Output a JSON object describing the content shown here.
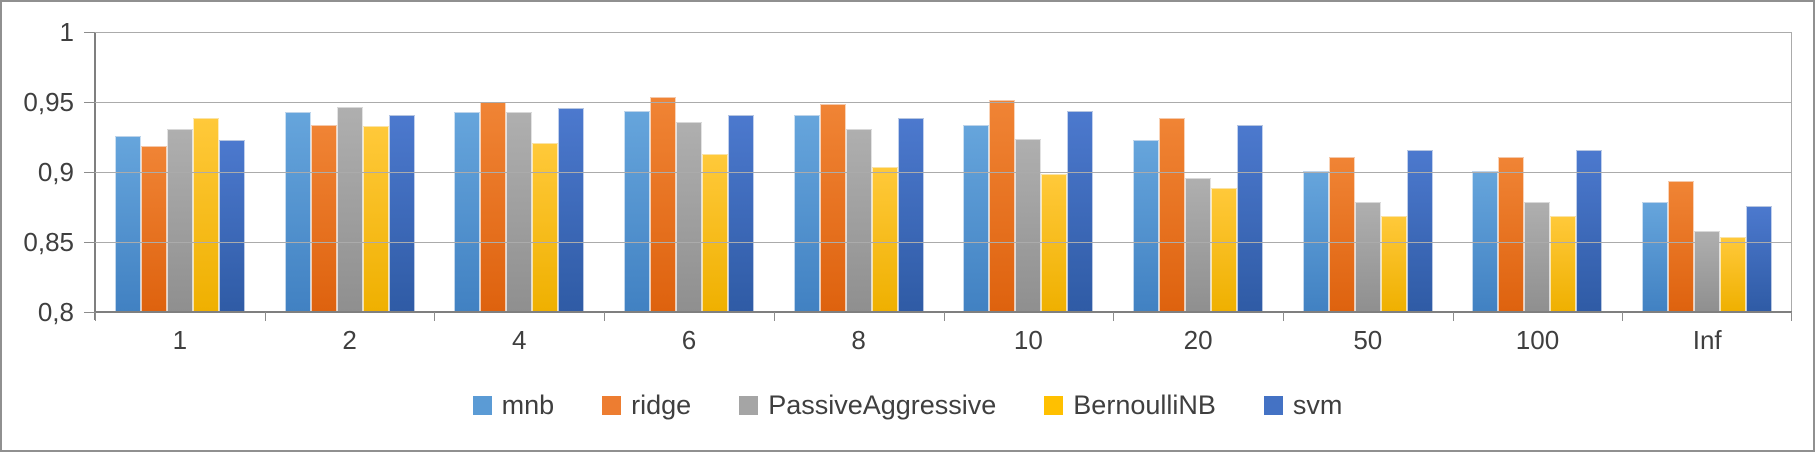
{
  "chart_data": {
    "type": "bar",
    "title": "",
    "xlabel": "",
    "ylabel": "",
    "categories": [
      "1",
      "2",
      "4",
      "6",
      "8",
      "10",
      "20",
      "50",
      "100",
      "Inf"
    ],
    "series": [
      {
        "name": "mnb",
        "color": "#5B9BD5",
        "gradient_top": "#66A5DC",
        "gradient_bottom": "#4181C2",
        "values": [
          0.925,
          0.942,
          0.942,
          0.943,
          0.94,
          0.933,
          0.922,
          0.9,
          0.9,
          0.878
        ]
      },
      {
        "name": "ridge",
        "color": "#ED7D31",
        "gradient_top": "#F08435",
        "gradient_bottom": "#DE620E",
        "values": [
          0.918,
          0.933,
          0.949,
          0.953,
          0.948,
          0.951,
          0.938,
          0.91,
          0.91,
          0.893
        ]
      },
      {
        "name": "PassiveAggressive",
        "color": "#A5A5A5",
        "gradient_top": "#AFAFAF",
        "gradient_bottom": "#8F8F8F",
        "values": [
          0.93,
          0.946,
          0.942,
          0.935,
          0.93,
          0.923,
          0.895,
          0.878,
          0.878,
          0.857
        ]
      },
      {
        "name": "BernoulliNB",
        "color": "#FFC000",
        "gradient_top": "#FFC93A",
        "gradient_bottom": "#EFB000",
        "values": [
          0.938,
          0.932,
          0.92,
          0.912,
          0.903,
          0.898,
          0.888,
          0.868,
          0.868,
          0.853
        ]
      },
      {
        "name": "svm",
        "color": "#4472C4",
        "gradient_top": "#4C79CE",
        "gradient_bottom": "#2F5BA5",
        "values": [
          0.922,
          0.94,
          0.945,
          0.94,
          0.938,
          0.943,
          0.933,
          0.915,
          0.915,
          0.875
        ]
      }
    ],
    "ylim": [
      0.8,
      1.0
    ],
    "y_ticks": [
      {
        "value": 1.0,
        "label": "1"
      },
      {
        "value": 0.95,
        "label": "0,95"
      },
      {
        "value": 0.9,
        "label": "0,9"
      },
      {
        "value": 0.85,
        "label": "0,85"
      },
      {
        "value": 0.8,
        "label": "0,8"
      }
    ],
    "grid": true,
    "legend_position": "bottom"
  }
}
